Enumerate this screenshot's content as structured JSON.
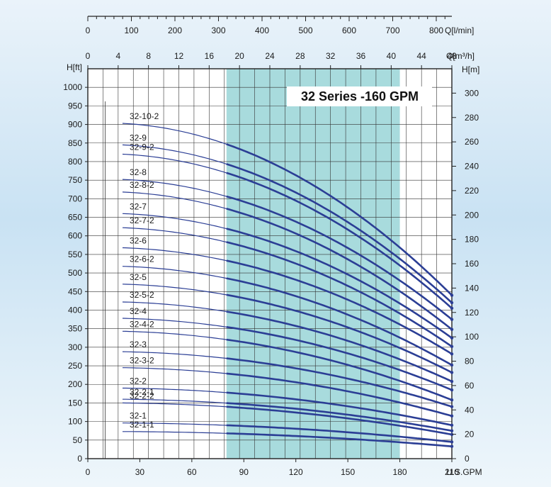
{
  "chart_data": {
    "type": "line",
    "title": "32 Series -160 GPM",
    "x_axis": {
      "label": "U.S.GPM",
      "range": [
        0,
        210
      ],
      "ticks": [
        "0",
        "30",
        "60",
        "90",
        "120",
        "150",
        "180",
        "210"
      ]
    },
    "secondary_x_axis_m3h": {
      "label": "Q[m³/h]",
      "range": [
        0,
        48
      ],
      "ticks": [
        "0",
        "4",
        "8",
        "12",
        "16",
        "20",
        "24",
        "28",
        "32",
        "36",
        "40",
        "44",
        "48"
      ]
    },
    "secondary_x_axis_lmin": {
      "label": "Q[l/min]",
      "range": [
        0,
        800
      ],
      "ticks": [
        "0",
        "100",
        "200",
        "300",
        "400",
        "500",
        "600",
        "700",
        "800"
      ]
    },
    "y_axis_ft": {
      "label": "H[ft]",
      "range": [
        0,
        1050
      ],
      "ticks": [
        "0",
        "50",
        "100",
        "150",
        "200",
        "250",
        "300",
        "350",
        "400",
        "450",
        "500",
        "550",
        "600",
        "650",
        "700",
        "750",
        "800",
        "850",
        "900",
        "950",
        "1000"
      ]
    },
    "y_axis_m": {
      "label": "H[m]",
      "range": [
        0,
        320
      ],
      "ticks": [
        "0",
        "20",
        "40",
        "60",
        "80",
        "100",
        "120",
        "140",
        "160",
        "180",
        "200",
        "220",
        "240",
        "260",
        "280",
        "300"
      ]
    },
    "recommended_range_gpm": [
      80,
      180
    ],
    "grid": true,
    "series": [
      {
        "name": "32-10-2",
        "y_at_20": 903,
        "y_at_210": 440
      },
      {
        "name": "32-9",
        "y_at_20": 845,
        "y_at_210": 420
      },
      {
        "name": "32-9-2",
        "y_at_20": 820,
        "y_at_210": 405
      },
      {
        "name": "32-8",
        "y_at_20": 752,
        "y_at_210": 375
      },
      {
        "name": "32-8-2",
        "y_at_20": 718,
        "y_at_210": 348
      },
      {
        "name": "32-7",
        "y_at_20": 660,
        "y_at_210": 325
      },
      {
        "name": "32-7-2",
        "y_at_20": 622,
        "y_at_210": 302
      },
      {
        "name": "32-6",
        "y_at_20": 568,
        "y_at_210": 282
      },
      {
        "name": "32-6-2",
        "y_at_20": 518,
        "y_at_210": 252
      },
      {
        "name": "32-5",
        "y_at_20": 470,
        "y_at_210": 232
      },
      {
        "name": "32-5-2",
        "y_at_20": 422,
        "y_at_210": 208
      },
      {
        "name": "32-4",
        "y_at_20": 378,
        "y_at_210": 185
      },
      {
        "name": "32-4-2",
        "y_at_20": 343,
        "y_at_210": 158
      },
      {
        "name": "32-3",
        "y_at_20": 288,
        "y_at_210": 140
      },
      {
        "name": "32-3-2",
        "y_at_20": 245,
        "y_at_210": 115
      },
      {
        "name": "32-2",
        "y_at_20": 190,
        "y_at_210": 90
      },
      {
        "name": "32-2-1",
        "y_at_20": 160,
        "y_at_210": 75
      },
      {
        "name": "32-2-2",
        "y_at_20": 150,
        "y_at_210": 65
      },
      {
        "name": "32-1",
        "y_at_20": 96,
        "y_at_210": 45
      },
      {
        "name": "32-1-1",
        "y_at_20": 73,
        "y_at_210": 33
      }
    ]
  }
}
